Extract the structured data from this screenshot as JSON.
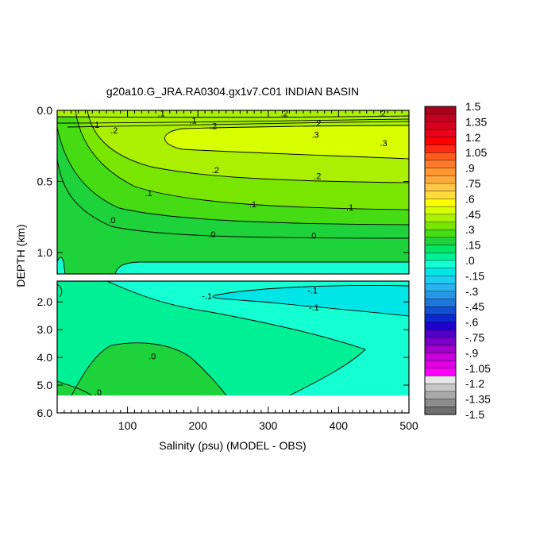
{
  "chart_data": {
    "type": "contour",
    "title": "g20a10.G_JRA.RA0304.gx1v7.C01 INDIAN BASIN",
    "xlabel": "Salinity (psu) (MODEL - OBS)",
    "ylabel": "DEPTH (km)",
    "xlim": [
      0,
      500
    ],
    "x_ticks": [
      "100",
      "200",
      "300",
      "400",
      "500"
    ],
    "upper_panel": {
      "ylim": [
        0.0,
        1.15
      ],
      "y_ticks": [
        {
          "value": 0.0,
          "label": "0.0"
        },
        {
          "value": 0.5,
          "label": "0.5"
        },
        {
          "value": 1.0,
          "label": "1.0"
        }
      ]
    },
    "lower_panel": {
      "ylim": [
        1.25,
        6.0
      ],
      "missing_below_depth": 5.4,
      "y_ticks": [
        {
          "value": 2.0,
          "label": "2.0"
        },
        {
          "value": 3.0,
          "label": "3.0"
        },
        {
          "value": 4.0,
          "label": "4.0"
        },
        {
          "value": 5.0,
          "label": "5.0"
        },
        {
          "value": 6.0,
          "label": "6.0"
        }
      ]
    },
    "contour_labels": [
      {
        "panel": "upper",
        "x": 148,
        "y": 0.02,
        "text": ".1"
      },
      {
        "panel": "upper",
        "x": 323,
        "y": 0.02,
        "text": ".2"
      },
      {
        "panel": "upper",
        "x": 462,
        "y": 0.02,
        "text": ".2"
      },
      {
        "panel": "upper",
        "x": 193,
        "y": 0.07,
        "text": ".1"
      },
      {
        "panel": "upper",
        "x": 55,
        "y": 0.1,
        "text": ".1"
      },
      {
        "panel": "upper",
        "x": 222,
        "y": 0.11,
        "text": ".2"
      },
      {
        "panel": "upper",
        "x": 370,
        "y": 0.09,
        "text": ".2"
      },
      {
        "panel": "upper",
        "x": 81,
        "y": 0.14,
        "text": ".2"
      },
      {
        "panel": "upper",
        "x": 367,
        "y": 0.17,
        "text": ".3"
      },
      {
        "panel": "upper",
        "x": 464,
        "y": 0.23,
        "text": ".3"
      },
      {
        "panel": "upper",
        "x": 225,
        "y": 0.42,
        "text": ".2"
      },
      {
        "panel": "upper",
        "x": 370,
        "y": 0.46,
        "text": ".2"
      },
      {
        "panel": "upper",
        "x": 130,
        "y": 0.58,
        "text": ".1"
      },
      {
        "panel": "upper",
        "x": 278,
        "y": 0.66,
        "text": ".1"
      },
      {
        "panel": "upper",
        "x": 416,
        "y": 0.68,
        "text": ".1"
      },
      {
        "panel": "upper",
        "x": 78,
        "y": 0.77,
        "text": ".0"
      },
      {
        "panel": "upper",
        "x": 220,
        "y": 0.87,
        "text": ".0"
      },
      {
        "panel": "upper",
        "x": 363,
        "y": 0.88,
        "text": ".0"
      },
      {
        "panel": "lower",
        "x": 363,
        "y": 1.58,
        "text": "-.1"
      },
      {
        "panel": "lower",
        "x": 213,
        "y": 1.78,
        "text": "-.1"
      },
      {
        "panel": "lower",
        "x": 365,
        "y": 2.2,
        "text": "-.1"
      },
      {
        "panel": "lower",
        "x": 135,
        "y": 3.95,
        "text": ".0"
      },
      {
        "panel": "lower",
        "x": 58,
        "y": 5.25,
        "text": ".0"
      }
    ],
    "colorbar": {
      "labels": [
        "1.5",
        "1.35",
        "1.2",
        "1.05",
        ".9",
        ".75",
        ".6",
        ".45",
        ".3",
        ".15",
        ".0",
        "-.15",
        "-.3",
        "-.45",
        "-.6",
        "-.75",
        "-.9",
        "-1.05",
        "-1.2",
        "-1.35",
        "-1.5"
      ],
      "colors": [
        "#a8001a",
        "#c00020",
        "#d6001e",
        "#e8001c",
        "#ff0000",
        "#ff2a14",
        "#ff5a1e",
        "#ff7a2a",
        "#ff9632",
        "#ffaa3c",
        "#ffc846",
        "#ffdc3c",
        "#ffff00",
        "#d7ff00",
        "#aaf000",
        "#7ae600",
        "#46dc14",
        "#1ed23c",
        "#00e664",
        "#00f096",
        "#14ffd2",
        "#00e6e6",
        "#1ecdf0",
        "#28b4f0",
        "#2896e6",
        "#1e78dc",
        "#1450d2",
        "#0a28cd",
        "#1e00cd",
        "#5000c8",
        "#7800c8",
        "#a000c8",
        "#c800dc",
        "#e100e6",
        "#ff00ff",
        "#e6e6e6",
        "#c8c8c8",
        "#aaaaaa",
        "#8c8c8c",
        "#6e6e6e"
      ]
    }
  }
}
